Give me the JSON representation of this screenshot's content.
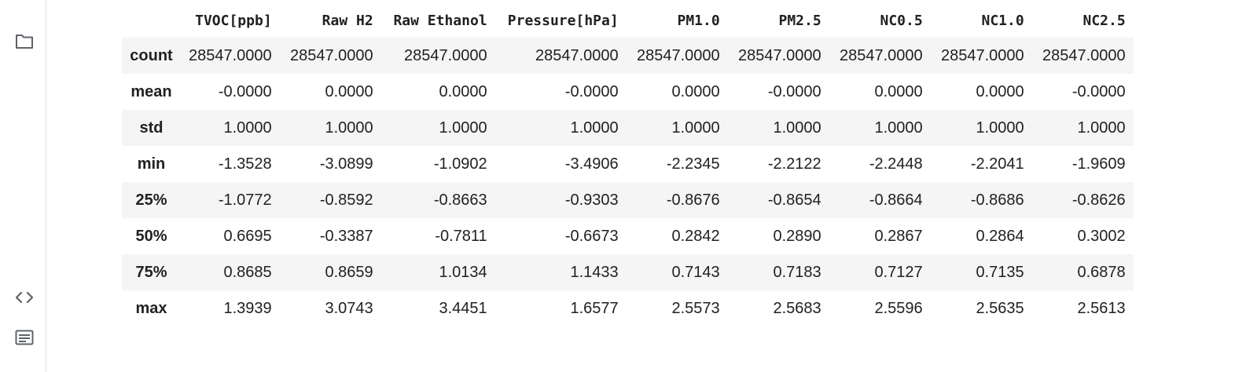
{
  "sidebar": {
    "icons": [
      "folder-icon",
      "code-icon",
      "terminal-icon"
    ]
  },
  "table": {
    "columns": [
      "",
      "TVOC[ppb]",
      "Raw H2",
      "Raw Ethanol",
      "Pressure[hPa]",
      "PM1.0",
      "PM2.5",
      "NC0.5",
      "NC1.0",
      "NC2.5"
    ],
    "rows": [
      {
        "label": "count",
        "values": [
          "28547.0000",
          "28547.0000",
          "28547.0000",
          "28547.0000",
          "28547.0000",
          "28547.0000",
          "28547.0000",
          "28547.0000",
          "28547.0000"
        ]
      },
      {
        "label": "mean",
        "values": [
          "-0.0000",
          "0.0000",
          "0.0000",
          "-0.0000",
          "0.0000",
          "-0.0000",
          "0.0000",
          "0.0000",
          "-0.0000"
        ]
      },
      {
        "label": "std",
        "values": [
          "1.0000",
          "1.0000",
          "1.0000",
          "1.0000",
          "1.0000",
          "1.0000",
          "1.0000",
          "1.0000",
          "1.0000"
        ]
      },
      {
        "label": "min",
        "values": [
          "-1.3528",
          "-3.0899",
          "-1.0902",
          "-3.4906",
          "-2.2345",
          "-2.2122",
          "-2.2448",
          "-2.2041",
          "-1.9609"
        ]
      },
      {
        "label": "25%",
        "values": [
          "-1.0772",
          "-0.8592",
          "-0.8663",
          "-0.9303",
          "-0.8676",
          "-0.8654",
          "-0.8664",
          "-0.8686",
          "-0.8626"
        ]
      },
      {
        "label": "50%",
        "values": [
          "0.6695",
          "-0.3387",
          "-0.7811",
          "-0.6673",
          "0.2842",
          "0.2890",
          "0.2867",
          "0.2864",
          "0.3002"
        ]
      },
      {
        "label": "75%",
        "values": [
          "0.8685",
          "0.8659",
          "1.0134",
          "1.1433",
          "0.7143",
          "0.7183",
          "0.7127",
          "0.7135",
          "0.6878"
        ]
      },
      {
        "label": "max",
        "values": [
          "1.3939",
          "3.0743",
          "3.4451",
          "1.6577",
          "2.5573",
          "2.5683",
          "2.5596",
          "2.5635",
          "2.5613"
        ]
      }
    ]
  }
}
